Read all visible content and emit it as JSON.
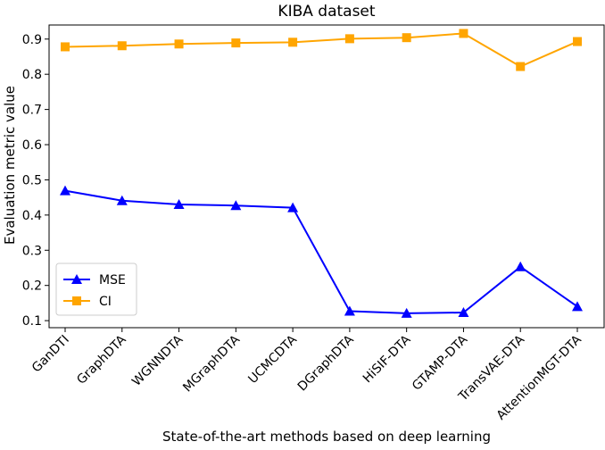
{
  "chart_data": {
    "type": "line",
    "title": "KIBA dataset",
    "xlabel": "State-of-the-art methods based on deep learning",
    "ylabel": "Evaluation metric value",
    "categories": [
      "GanDTI",
      "GraphDTA",
      "WGNNDTA",
      "MGraphDTA",
      "UCMCDTA",
      "DGraphDTA",
      "HiSIF-DTA",
      "GTAMP-DTA",
      "TransVAE-DTA",
      "AttentionMGT-DTA"
    ],
    "ylim": [
      0.08,
      0.94
    ],
    "yticks": [
      "0.1",
      "0.2",
      "0.3",
      "0.4",
      "0.5",
      "0.6",
      "0.7",
      "0.8",
      "0.9"
    ],
    "legend_position": "lower-left",
    "series": [
      {
        "name": "MSE",
        "color": "#0000ff",
        "marker": "triangle",
        "values": [
          0.469,
          0.441,
          0.43,
          0.427,
          0.421,
          0.127,
          0.121,
          0.123,
          0.253,
          0.14
        ]
      },
      {
        "name": "CI",
        "color": "#ffa500",
        "marker": "square",
        "values": [
          0.878,
          0.881,
          0.886,
          0.889,
          0.891,
          0.901,
          0.904,
          0.916,
          0.822,
          0.893
        ]
      }
    ]
  }
}
